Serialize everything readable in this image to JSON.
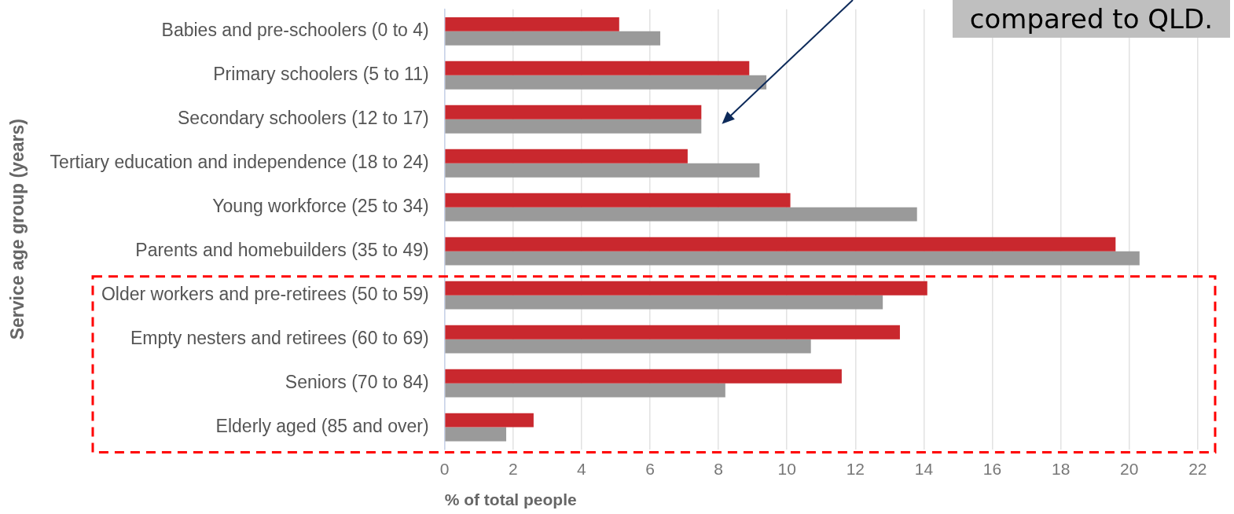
{
  "chart_data": {
    "type": "bar",
    "orientation": "horizontal",
    "ylabel": "Service age group (years)",
    "xlabel": "% of total people",
    "categories": [
      "Babies and pre-schoolers (0 to 4)",
      "Primary schoolers (5 to 11)",
      "Secondary schoolers (12 to 17)",
      "Tertiary education and independence (18 to 24)",
      "Young workforce (25 to 34)",
      "Parents and homebuilders (35 to 49)",
      "Older workers and pre-retirees (50 to 59)",
      "Empty nesters and retirees (60 to 69)",
      "Seniors (70 to 84)",
      "Elderly aged (85 and over)"
    ],
    "series": [
      {
        "color": "#c9282e",
        "values": [
          5.1,
          8.9,
          7.5,
          7.1,
          10.1,
          19.6,
          14.1,
          13.3,
          11.6,
          2.6
        ]
      },
      {
        "color": "#9a9a9a",
        "values": [
          6.3,
          9.4,
          7.5,
          9.2,
          13.8,
          20.3,
          12.8,
          10.7,
          8.2,
          1.8
        ]
      }
    ],
    "xlim": [
      0,
      22.6
    ],
    "xticks": [
      0,
      2,
      4,
      6,
      8,
      10,
      12,
      14,
      16,
      18,
      20,
      22
    ],
    "grid": "x",
    "legend": false,
    "annotations": [
      "compared to QLD."
    ]
  }
}
